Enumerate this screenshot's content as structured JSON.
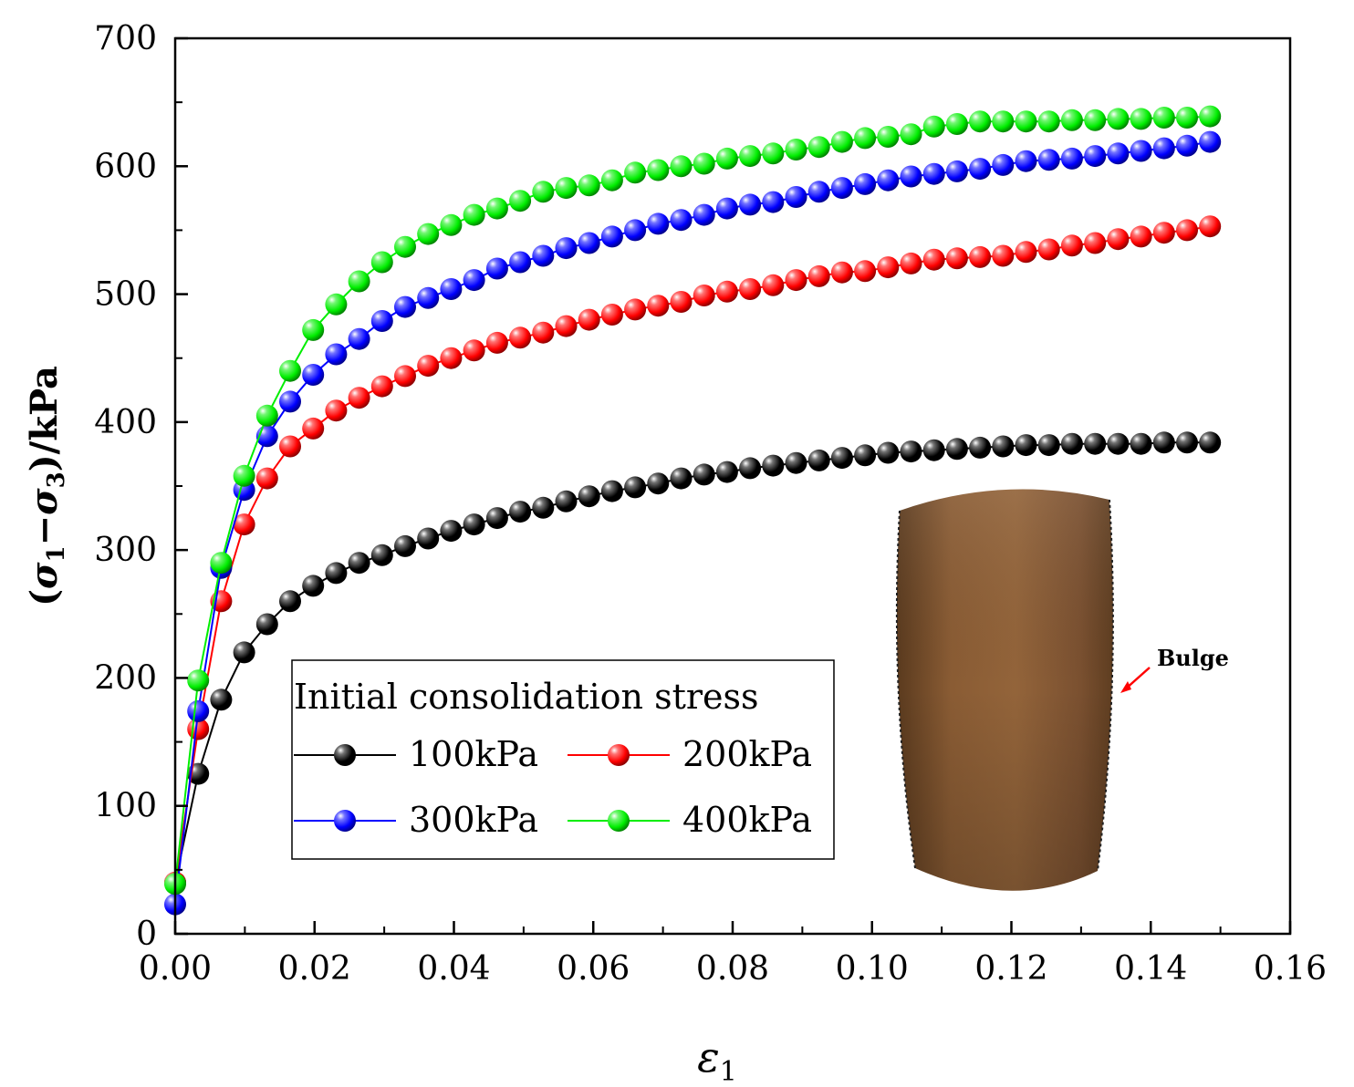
{
  "chart_data": {
    "type": "line",
    "xlabel": "ε",
    "xlabel_sub": "1",
    "ylabel": "(σ1−σ3)/kPa",
    "ylabel_parts": {
      "open": "(",
      "sigma1": "σ",
      "sub1": "1",
      "minus": "−",
      "sigma3": "σ",
      "sub3": "3",
      "close": ")/kPa"
    },
    "xlim": [
      0,
      0.16
    ],
    "ylim": [
      0,
      700
    ],
    "xticks": [
      "0.00",
      "0.02",
      "0.04",
      "0.06",
      "0.08",
      "0.10",
      "0.12",
      "0.14",
      "0.16"
    ],
    "xtick_values": [
      0,
      0.02,
      0.04,
      0.06,
      0.08,
      0.1,
      0.12,
      0.14,
      0.16
    ],
    "yticks": [
      "0",
      "100",
      "200",
      "300",
      "400",
      "500",
      "600",
      "700"
    ],
    "ytick_values": [
      0,
      100,
      200,
      300,
      400,
      500,
      600,
      700
    ],
    "grid": false,
    "legend": {
      "title": "Initial consolidation stress",
      "placement": "lower-left",
      "columns": 2
    },
    "annotation": {
      "text": "Bulge"
    },
    "series": [
      {
        "name": "100kPa",
        "color": "#000000",
        "x": [
          0.0,
          0.0033,
          0.0066,
          0.0099,
          0.0132,
          0.0165,
          0.0198,
          0.0231,
          0.0264,
          0.0297,
          0.033,
          0.0363,
          0.0396,
          0.0429,
          0.0462,
          0.0495,
          0.0528,
          0.0561,
          0.0594,
          0.0627,
          0.066,
          0.0693,
          0.0726,
          0.0759,
          0.0792,
          0.0825,
          0.0858,
          0.0891,
          0.0924,
          0.0957,
          0.099,
          0.1023,
          0.1056,
          0.1089,
          0.1122,
          0.1155,
          0.1188,
          0.1221,
          0.1254,
          0.1287,
          0.132,
          0.1353,
          0.1386,
          0.1419,
          0.1452,
          0.1485
        ],
        "y": [
          40,
          125,
          183,
          220,
          242,
          260,
          272,
          282,
          290,
          296,
          303,
          309,
          315,
          320,
          325,
          330,
          333,
          338,
          342,
          346,
          349,
          352,
          356,
          359,
          361,
          364,
          366,
          368,
          370,
          372,
          374,
          376,
          377,
          378,
          379,
          380,
          381,
          382,
          382,
          383,
          383,
          383,
          383,
          384,
          384,
          384
        ]
      },
      {
        "name": "200kPa",
        "color": "#ff0000",
        "x": [
          0.0,
          0.0033,
          0.0066,
          0.0099,
          0.0132,
          0.0165,
          0.0198,
          0.0231,
          0.0264,
          0.0297,
          0.033,
          0.0363,
          0.0396,
          0.0429,
          0.0462,
          0.0495,
          0.0528,
          0.0561,
          0.0594,
          0.0627,
          0.066,
          0.0693,
          0.0726,
          0.0759,
          0.0792,
          0.0825,
          0.0858,
          0.0891,
          0.0924,
          0.0957,
          0.099,
          0.1023,
          0.1056,
          0.1089,
          0.1122,
          0.1155,
          0.1188,
          0.1221,
          0.1254,
          0.1287,
          0.132,
          0.1353,
          0.1386,
          0.1419,
          0.1452,
          0.1485
        ],
        "y": [
          40,
          160,
          260,
          320,
          356,
          381,
          395,
          409,
          419,
          428,
          436,
          444,
          450,
          456,
          462,
          466,
          470,
          475,
          480,
          484,
          488,
          491,
          494,
          499,
          502,
          504,
          507,
          511,
          514,
          517,
          518,
          521,
          524,
          527,
          528,
          529,
          530,
          533,
          535,
          538,
          540,
          543,
          545,
          548,
          550,
          553
        ]
      },
      {
        "name": "300kPa",
        "color": "#0000ff",
        "x": [
          0.0,
          0.0033,
          0.0066,
          0.0099,
          0.0132,
          0.0165,
          0.0198,
          0.0231,
          0.0264,
          0.0297,
          0.033,
          0.0363,
          0.0396,
          0.0429,
          0.0462,
          0.0495,
          0.0528,
          0.0561,
          0.0594,
          0.0627,
          0.066,
          0.0693,
          0.0726,
          0.0759,
          0.0792,
          0.0825,
          0.0858,
          0.0891,
          0.0924,
          0.0957,
          0.099,
          0.1023,
          0.1056,
          0.1089,
          0.1122,
          0.1155,
          0.1188,
          0.1221,
          0.1254,
          0.1287,
          0.132,
          0.1353,
          0.1386,
          0.1419,
          0.1452,
          0.1485
        ],
        "y": [
          23,
          174,
          286,
          347,
          389,
          416,
          437,
          453,
          465,
          479,
          490,
          497,
          504,
          511,
          520,
          525,
          530,
          536,
          540,
          545,
          550,
          555,
          558,
          562,
          567,
          570,
          572,
          576,
          580,
          583,
          586,
          589,
          592,
          594,
          596,
          598,
          601,
          604,
          605,
          606,
          608,
          610,
          612,
          614,
          616,
          619
        ]
      },
      {
        "name": "400kPa",
        "color": "#00ee00",
        "x": [
          0.0,
          0.0033,
          0.0066,
          0.0099,
          0.0132,
          0.0165,
          0.0198,
          0.0231,
          0.0264,
          0.0297,
          0.033,
          0.0363,
          0.0396,
          0.0429,
          0.0462,
          0.0495,
          0.0528,
          0.0561,
          0.0594,
          0.0627,
          0.066,
          0.0693,
          0.0726,
          0.0759,
          0.0792,
          0.0825,
          0.0858,
          0.0891,
          0.0924,
          0.0957,
          0.099,
          0.1023,
          0.1056,
          0.1089,
          0.1122,
          0.1155,
          0.1188,
          0.1221,
          0.1254,
          0.1287,
          0.132,
          0.1353,
          0.1386,
          0.1419,
          0.1452,
          0.1485
        ],
        "y": [
          39,
          198,
          290,
          358,
          405,
          440,
          472,
          492,
          510,
          525,
          537,
          547,
          554,
          562,
          567,
          573,
          580,
          583,
          585,
          589,
          595,
          597,
          600,
          602,
          606,
          608,
          610,
          613,
          615,
          619,
          622,
          623,
          625,
          631,
          633,
          635,
          635,
          635,
          635,
          636,
          636,
          637,
          637,
          638,
          638,
          639
        ]
      }
    ]
  }
}
